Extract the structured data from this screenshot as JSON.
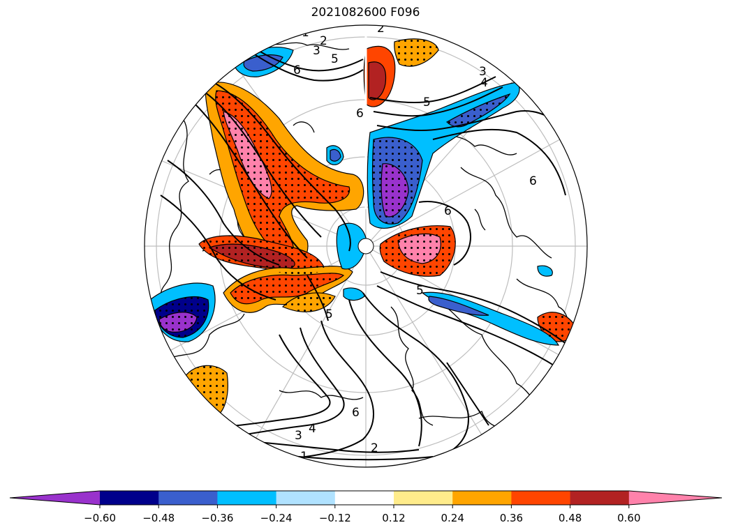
{
  "title": "2021082600 F096",
  "map": {
    "projection": "north-polar-stereographic",
    "stippling": "significant",
    "contour_labels": [
      "1",
      "2",
      "3",
      "5",
      "6",
      "3",
      "4",
      "5",
      "6",
      "6",
      "6",
      "5",
      "5",
      "6",
      "4",
      "3",
      "2",
      "1",
      "2"
    ]
  },
  "colorbar": {
    "extend": "both",
    "ticks": [
      "−0.60",
      "−0.48",
      "−0.36",
      "−0.24",
      "−0.12",
      "0.12",
      "0.24",
      "0.36",
      "0.48",
      "0.60"
    ],
    "colors": [
      "#9932CC",
      "#00008B",
      "#3A5FCD",
      "#00BFFF",
      "#B0E2FF",
      "#FFFFFF",
      "#FFEC8B",
      "#FFA500",
      "#FF4500",
      "#B22222",
      "#FF82AB"
    ]
  }
}
